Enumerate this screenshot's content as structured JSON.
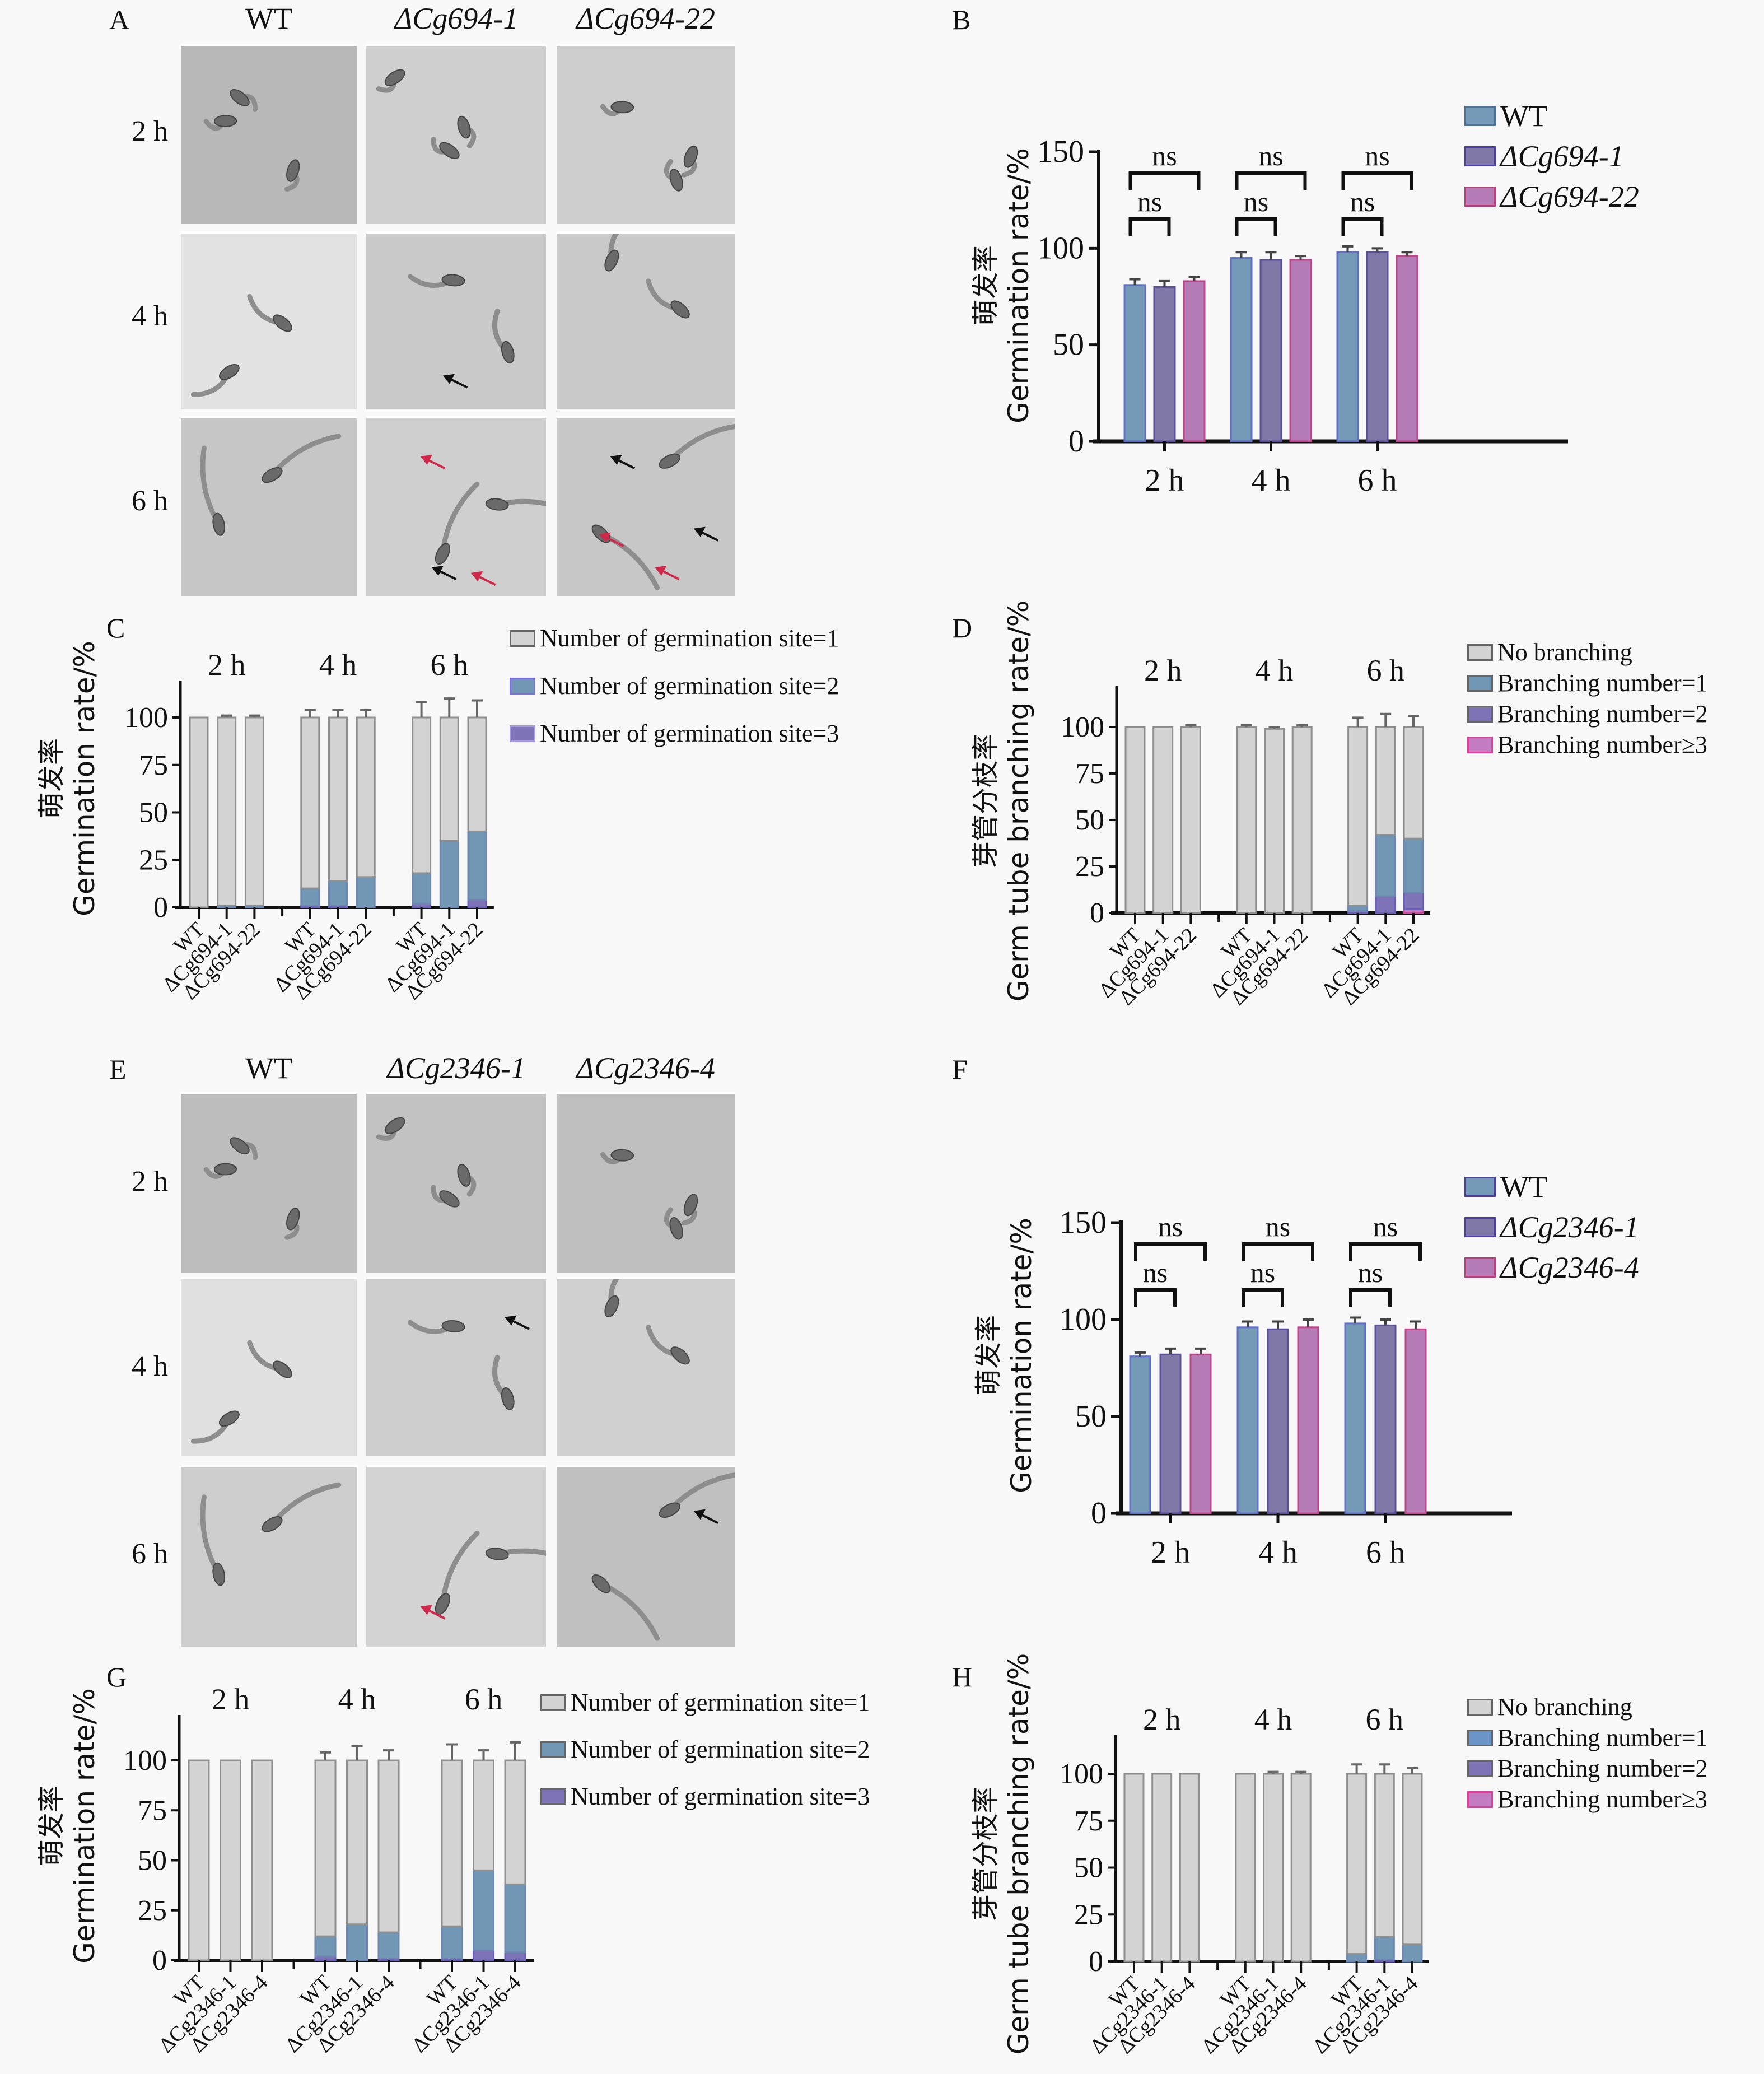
{
  "colors": {
    "wt": "#7499b7",
    "mut1": "#8078a6",
    "mut2": "#b47bb7",
    "site1": "#d3d3d3",
    "site2": "#7297b5",
    "site3": "#7e73b6",
    "branch0": "#d3d3d3",
    "branch1": "#7297b5",
    "branch2": "#7e73b6",
    "branch3": "#c37bc2",
    "red_arrow": "#d0284a"
  },
  "panel_A": {
    "label": "A",
    "columns": [
      "WT",
      "ΔCg694-1",
      "ΔCg694-22"
    ],
    "rows": [
      "2 h",
      "4 h",
      "6 h"
    ]
  },
  "panel_E": {
    "label": "E",
    "columns": [
      "WT",
      "ΔCg2346-1",
      "ΔCg2346-4"
    ],
    "rows": [
      "2 h",
      "4 h",
      "6 h"
    ]
  },
  "chart_data": [
    {
      "id": "B",
      "type": "bar",
      "panel_label": "B",
      "ylabel_zh": "萌发率",
      "ylabel": "Germination rate/%",
      "categories": [
        "2 h",
        "4 h",
        "6 h"
      ],
      "ylim": [
        0,
        150
      ],
      "yticks": [
        "0",
        "50",
        "100",
        "150"
      ],
      "series": [
        {
          "name": "WT",
          "values": [
            81,
            95,
            98
          ],
          "errors": [
            3,
            3,
            3
          ]
        },
        {
          "name": "ΔCg694-1",
          "values": [
            80,
            94,
            98
          ],
          "errors": [
            3,
            4,
            2
          ]
        },
        {
          "name": "ΔCg694-22",
          "values": [
            83,
            94,
            96
          ],
          "errors": [
            2,
            2,
            2
          ]
        }
      ],
      "significance": [
        {
          "group": "2 h",
          "outer": "ns",
          "inner": "ns"
        },
        {
          "group": "4 h",
          "outer": "ns",
          "inner": "ns"
        },
        {
          "group": "6 h",
          "outer": "ns",
          "inner": "ns"
        }
      ],
      "legend_position": "top-right"
    },
    {
      "id": "C",
      "type": "bar",
      "stacked": true,
      "panel_label": "C",
      "ylabel_zh": "萌发率",
      "ylabel": "Germination rate/%",
      "groups": [
        "2 h",
        "4 h",
        "6 h"
      ],
      "categories": [
        "WT",
        "ΔCg694-1",
        "ΔCg694-22"
      ],
      "ylim": [
        0,
        115
      ],
      "yticks": [
        "0",
        "25",
        "50",
        "75",
        "100"
      ],
      "series": [
        {
          "name": "Number of germination site=1",
          "values": [
            [
              100,
              99,
              99
            ],
            [
              90,
              86,
              84
            ],
            [
              82,
              65,
              60
            ]
          ]
        },
        {
          "name": "Number of germination site=2",
          "values": [
            [
              0,
              1,
              1
            ],
            [
              9,
              13,
              16
            ],
            [
              16,
              35,
              36
            ]
          ]
        },
        {
          "name": "Number of germination site=3",
          "values": [
            [
              0,
              0,
              0
            ],
            [
              1,
              1,
              0
            ],
            [
              2,
              0,
              4
            ]
          ]
        }
      ],
      "errors_top": [
        [
          0,
          1,
          1
        ],
        [
          4,
          4,
          4
        ],
        [
          8,
          10,
          9
        ]
      ],
      "legend_position": "top-right"
    },
    {
      "id": "D",
      "type": "bar",
      "stacked": true,
      "panel_label": "D",
      "ylabel_zh": "芽管分枝率",
      "ylabel": "Germ tube branching rate/%",
      "groups": [
        "2 h",
        "4 h",
        "6 h"
      ],
      "categories": [
        "WT",
        "ΔCg694-1",
        "ΔCg694-22"
      ],
      "ylim": [
        0,
        120
      ],
      "yticks": [
        "0",
        "25",
        "50",
        "75",
        "100"
      ],
      "series": [
        {
          "name": "No branching",
          "values": [
            [
              100,
              100,
              100
            ],
            [
              100,
              99,
              100
            ],
            [
              96,
              58,
              60
            ]
          ]
        },
        {
          "name": "Branching number=1",
          "values": [
            [
              0,
              0,
              0
            ],
            [
              0,
              0,
              0
            ],
            [
              3,
              33,
              29
            ]
          ]
        },
        {
          "name": "Branching number=2",
          "values": [
            [
              0,
              0,
              0
            ],
            [
              0,
              0,
              0
            ],
            [
              1,
              9,
              9
            ]
          ]
        },
        {
          "name": "Branching number≥3",
          "values": [
            [
              0,
              0,
              0
            ],
            [
              0,
              0,
              0
            ],
            [
              0,
              0,
              2
            ]
          ]
        }
      ],
      "errors_top": [
        [
          0,
          0,
          1
        ],
        [
          1,
          1,
          1
        ],
        [
          5,
          7,
          6
        ]
      ],
      "legend_position": "top-right"
    },
    {
      "id": "F",
      "type": "bar",
      "panel_label": "F",
      "ylabel_zh": "萌发率",
      "ylabel": "Germination rate/%",
      "categories": [
        "2 h",
        "4 h",
        "6 h"
      ],
      "ylim": [
        0,
        150
      ],
      "yticks": [
        "0",
        "50",
        "100",
        "150"
      ],
      "series": [
        {
          "name": "WT",
          "values": [
            81,
            96,
            98
          ],
          "errors": [
            2,
            3,
            3
          ]
        },
        {
          "name": "ΔCg2346-1",
          "values": [
            82,
            95,
            97
          ],
          "errors": [
            3,
            4,
            3
          ]
        },
        {
          "name": "ΔCg2346-4",
          "values": [
            82,
            96,
            95
          ],
          "errors": [
            3,
            4,
            4
          ]
        }
      ],
      "significance": [
        {
          "group": "2 h",
          "outer": "ns",
          "inner": "ns"
        },
        {
          "group": "4 h",
          "outer": "ns",
          "inner": "ns"
        },
        {
          "group": "6 h",
          "outer": "ns",
          "inner": "ns"
        }
      ],
      "legend_position": "top-right"
    },
    {
      "id": "G",
      "type": "bar",
      "stacked": true,
      "panel_label": "G",
      "ylabel_zh": "萌发率",
      "ylabel": "Germination rate/%",
      "groups": [
        "2 h",
        "4 h",
        "6 h"
      ],
      "categories": [
        "WT",
        "ΔCg2346-1",
        "ΔCg2346-4"
      ],
      "ylim": [
        0,
        115
      ],
      "yticks": [
        "0",
        "25",
        "50",
        "75",
        "100"
      ],
      "series": [
        {
          "name": "Number of germination site=1",
          "values": [
            [
              100,
              100,
              100
            ],
            [
              88,
              82,
              86
            ],
            [
              83,
              55,
              62
            ]
          ]
        },
        {
          "name": "Number of germination site=2",
          "values": [
            [
              0,
              0,
              0
            ],
            [
              10,
              18,
              13
            ],
            [
              16,
              40,
              34
            ]
          ]
        },
        {
          "name": "Number of germination site=3",
          "values": [
            [
              0,
              0,
              0
            ],
            [
              2,
              0,
              1
            ],
            [
              1,
              5,
              4
            ]
          ]
        }
      ],
      "errors_top": [
        [
          0,
          0,
          0
        ],
        [
          4,
          7,
          5
        ],
        [
          8,
          5,
          9
        ]
      ],
      "legend_position": "top-right"
    },
    {
      "id": "H",
      "type": "bar",
      "stacked": true,
      "panel_label": "H",
      "ylabel_zh": "芽管分枝率",
      "ylabel": "Germ tube branching rate/%",
      "groups": [
        "2 h",
        "4 h",
        "6 h"
      ],
      "categories": [
        "WT",
        "ΔCg2346-1",
        "ΔCg2346-4"
      ],
      "ylim": [
        0,
        115
      ],
      "yticks": [
        "0",
        "25",
        "50",
        "75",
        "100"
      ],
      "series": [
        {
          "name": "No branching",
          "values": [
            [
              100,
              100,
              100
            ],
            [
              100,
              100,
              100
            ],
            [
              96,
              87,
              91
            ]
          ]
        },
        {
          "name": "Branching number=1",
          "values": [
            [
              0,
              0,
              0
            ],
            [
              0,
              0,
              0
            ],
            [
              4,
              12,
              9
            ]
          ]
        },
        {
          "name": "Branching number=2",
          "values": [
            [
              0,
              0,
              0
            ],
            [
              0,
              0,
              0
            ],
            [
              0,
              1,
              0
            ]
          ]
        },
        {
          "name": "Branching number≥3",
          "values": [
            [
              0,
              0,
              0
            ],
            [
              0,
              0,
              0
            ],
            [
              0,
              0,
              0
            ]
          ]
        }
      ],
      "errors_top": [
        [
          0,
          0,
          0
        ],
        [
          0,
          1,
          1
        ],
        [
          5,
          5,
          3
        ]
      ],
      "legend_position": "top-right"
    }
  ]
}
